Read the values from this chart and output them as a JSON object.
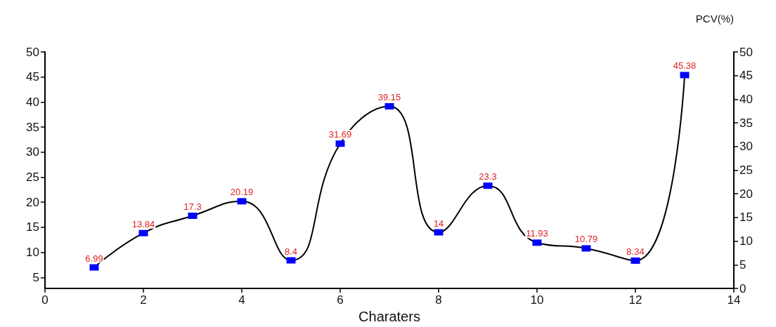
{
  "chart_data": {
    "type": "line",
    "xlabel": "Charaters",
    "y2label": "PCV(%)",
    "x": [
      1,
      2,
      3,
      4,
      5,
      6,
      7,
      8,
      9,
      10,
      11,
      12,
      13
    ],
    "series": [
      {
        "color": "#000000",
        "values": [
          6.99,
          13.84,
          17.3,
          20.19,
          8.4,
          31.69,
          39.15,
          14,
          23.3,
          11.93,
          10.79,
          8.34,
          45.38
        ]
      }
    ],
    "xlim": [
      0,
      14
    ],
    "xticks": [
      0,
      2,
      4,
      6,
      8,
      10,
      12,
      14
    ],
    "ylim": [
      2.8,
      50
    ],
    "yticks": [
      5,
      10,
      15,
      20,
      25,
      30,
      35,
      40,
      45,
      50
    ],
    "y2lim": [
      0,
      50
    ],
    "y2ticks": [
      0,
      5,
      10,
      15,
      20,
      25,
      30,
      35,
      40,
      45,
      50
    ],
    "marker": "square",
    "data_labels": true,
    "line_style": "solid",
    "grid": false
  }
}
